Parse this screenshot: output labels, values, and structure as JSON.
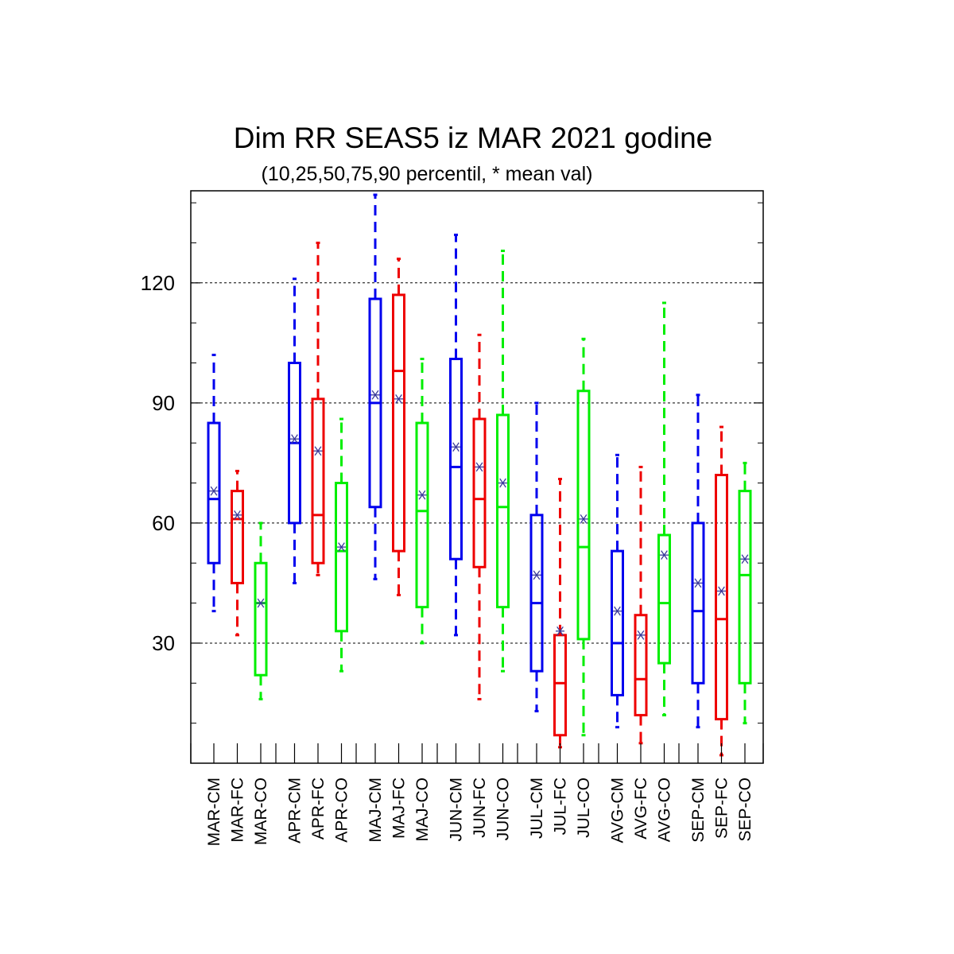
{
  "chart_data": {
    "type": "boxplot",
    "title": "Dim RR SEAS5 iz MAR 2021 godine",
    "subtitle": "(10,25,50,75,90 percentil, * mean val)",
    "ylim": [
      0,
      143
    ],
    "yticks": [
      30,
      60,
      90,
      120
    ],
    "grid": "horizontal dotted at major ticks",
    "colors": {
      "CM": "#0000ee",
      "FC": "#ee0000",
      "CO": "#00ee00",
      "mean_marker": "#3a3a9a"
    },
    "boxes": [
      {
        "label": "MAR-CM",
        "type": "CM",
        "p10": 38,
        "p25": 50,
        "p50": 66,
        "p75": 85,
        "p90": 102,
        "mean": 68
      },
      {
        "label": "MAR-FC",
        "type": "FC",
        "p10": 32,
        "p25": 45,
        "p50": 61,
        "p75": 68,
        "p90": 73,
        "mean": 62
      },
      {
        "label": "MAR-CO",
        "type": "CO",
        "p10": 16,
        "p25": 22,
        "p50": 40,
        "p75": 50,
        "p90": 60,
        "mean": 40
      },
      {
        "label": "APR-CM",
        "type": "CM",
        "p10": 45,
        "p25": 60,
        "p50": 80,
        "p75": 100,
        "p90": 121,
        "mean": 81
      },
      {
        "label": "APR-FC",
        "type": "FC",
        "p10": 47,
        "p25": 50,
        "p50": 62,
        "p75": 91,
        "p90": 130,
        "mean": 78
      },
      {
        "label": "APR-CO",
        "type": "CO",
        "p10": 23,
        "p25": 33,
        "p50": 53,
        "p75": 70,
        "p90": 86,
        "mean": 54
      },
      {
        "label": "MAJ-CM",
        "type": "CM",
        "p10": 46,
        "p25": 64,
        "p50": 90,
        "p75": 116,
        "p90": 142,
        "mean": 92
      },
      {
        "label": "MAJ-FC",
        "type": "FC",
        "p10": 42,
        "p25": 53,
        "p50": 98,
        "p75": 117,
        "p90": 126,
        "mean": 91
      },
      {
        "label": "MAJ-CO",
        "type": "CO",
        "p10": 30,
        "p25": 39,
        "p50": 63,
        "p75": 85,
        "p90": 101,
        "mean": 67
      },
      {
        "label": "JUN-CM",
        "type": "CM",
        "p10": 32,
        "p25": 51,
        "p50": 74,
        "p75": 101,
        "p90": 132,
        "mean": 79
      },
      {
        "label": "JUN-FC",
        "type": "FC",
        "p10": 16,
        "p25": 49,
        "p50": 66,
        "p75": 86,
        "p90": 107,
        "mean": 74
      },
      {
        "label": "JUN-CO",
        "type": "CO",
        "p10": 23,
        "p25": 39,
        "p50": 64,
        "p75": 87,
        "p90": 128,
        "mean": 70
      },
      {
        "label": "JUL-CM",
        "type": "CM",
        "p10": 13,
        "p25": 23,
        "p50": 40,
        "p75": 62,
        "p90": 90,
        "mean": 47
      },
      {
        "label": "JUL-FC",
        "type": "FC",
        "p10": 4,
        "p25": 7,
        "p50": 20,
        "p75": 32,
        "p90": 71,
        "mean": 33
      },
      {
        "label": "JUL-CO",
        "type": "CO",
        "p10": 7,
        "p25": 31,
        "p50": 54,
        "p75": 93,
        "p90": 106,
        "mean": 61
      },
      {
        "label": "AVG-CM",
        "type": "CM",
        "p10": 9,
        "p25": 17,
        "p50": 30,
        "p75": 53,
        "p90": 77,
        "mean": 38
      },
      {
        "label": "AVG-FC",
        "type": "FC",
        "p10": 5,
        "p25": 12,
        "p50": 21,
        "p75": 37,
        "p90": 74,
        "mean": 32
      },
      {
        "label": "AVG-CO",
        "type": "CO",
        "p10": 12,
        "p25": 25,
        "p50": 40,
        "p75": 57,
        "p90": 115,
        "mean": 52
      },
      {
        "label": "SEP-CM",
        "type": "CM",
        "p10": 9,
        "p25": 20,
        "p50": 38,
        "p75": 60,
        "p90": 92,
        "mean": 45
      },
      {
        "label": "SEP-FC",
        "type": "FC",
        "p10": 2,
        "p25": 11,
        "p50": 36,
        "p75": 72,
        "p90": 84,
        "mean": 43
      },
      {
        "label": "SEP-CO",
        "type": "CO",
        "p10": 10,
        "p25": 20,
        "p50": 47,
        "p75": 68,
        "p90": 75,
        "mean": 51
      }
    ]
  }
}
